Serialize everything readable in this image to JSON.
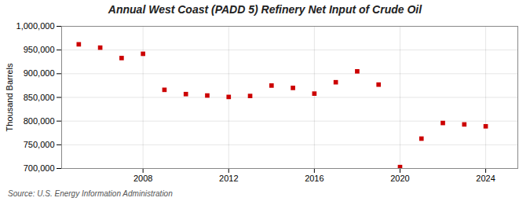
{
  "chart_data": {
    "type": "scatter",
    "title": "Annual West Coast (PADD 5) Refinery Net Input of Crude Oil",
    "ylabel": "Thousand Barrels",
    "source": "Source: U.S. Energy Information Administration",
    "x": [
      2005,
      2006,
      2007,
      2008,
      2009,
      2010,
      2011,
      2012,
      2013,
      2014,
      2015,
      2016,
      2017,
      2018,
      2019,
      2020,
      2021,
      2022,
      2023,
      2024
    ],
    "values": [
      962000,
      955000,
      933000,
      942000,
      866000,
      857000,
      854000,
      851000,
      853000,
      875000,
      870000,
      858000,
      882000,
      905000,
      877000,
      703000,
      763000,
      796000,
      793000,
      789000
    ],
    "color": "#cc0000",
    "marker": "square",
    "xlim": [
      2004.2,
      2025.5
    ],
    "xticks": [
      2008,
      2012,
      2016,
      2020,
      2024
    ],
    "ylim": [
      700000,
      1000000
    ],
    "yticks": [
      {
        "value": 700000,
        "label": "700,000"
      },
      {
        "value": 750000,
        "label": "750,000"
      },
      {
        "value": 800000,
        "label": "800,000"
      },
      {
        "value": 850000,
        "label": "850,000"
      },
      {
        "value": 900000,
        "label": "900,000"
      },
      {
        "value": 950000,
        "label": "950,000"
      },
      {
        "value": 1000000,
        "label": "1,000,000"
      }
    ],
    "grid": true
  }
}
